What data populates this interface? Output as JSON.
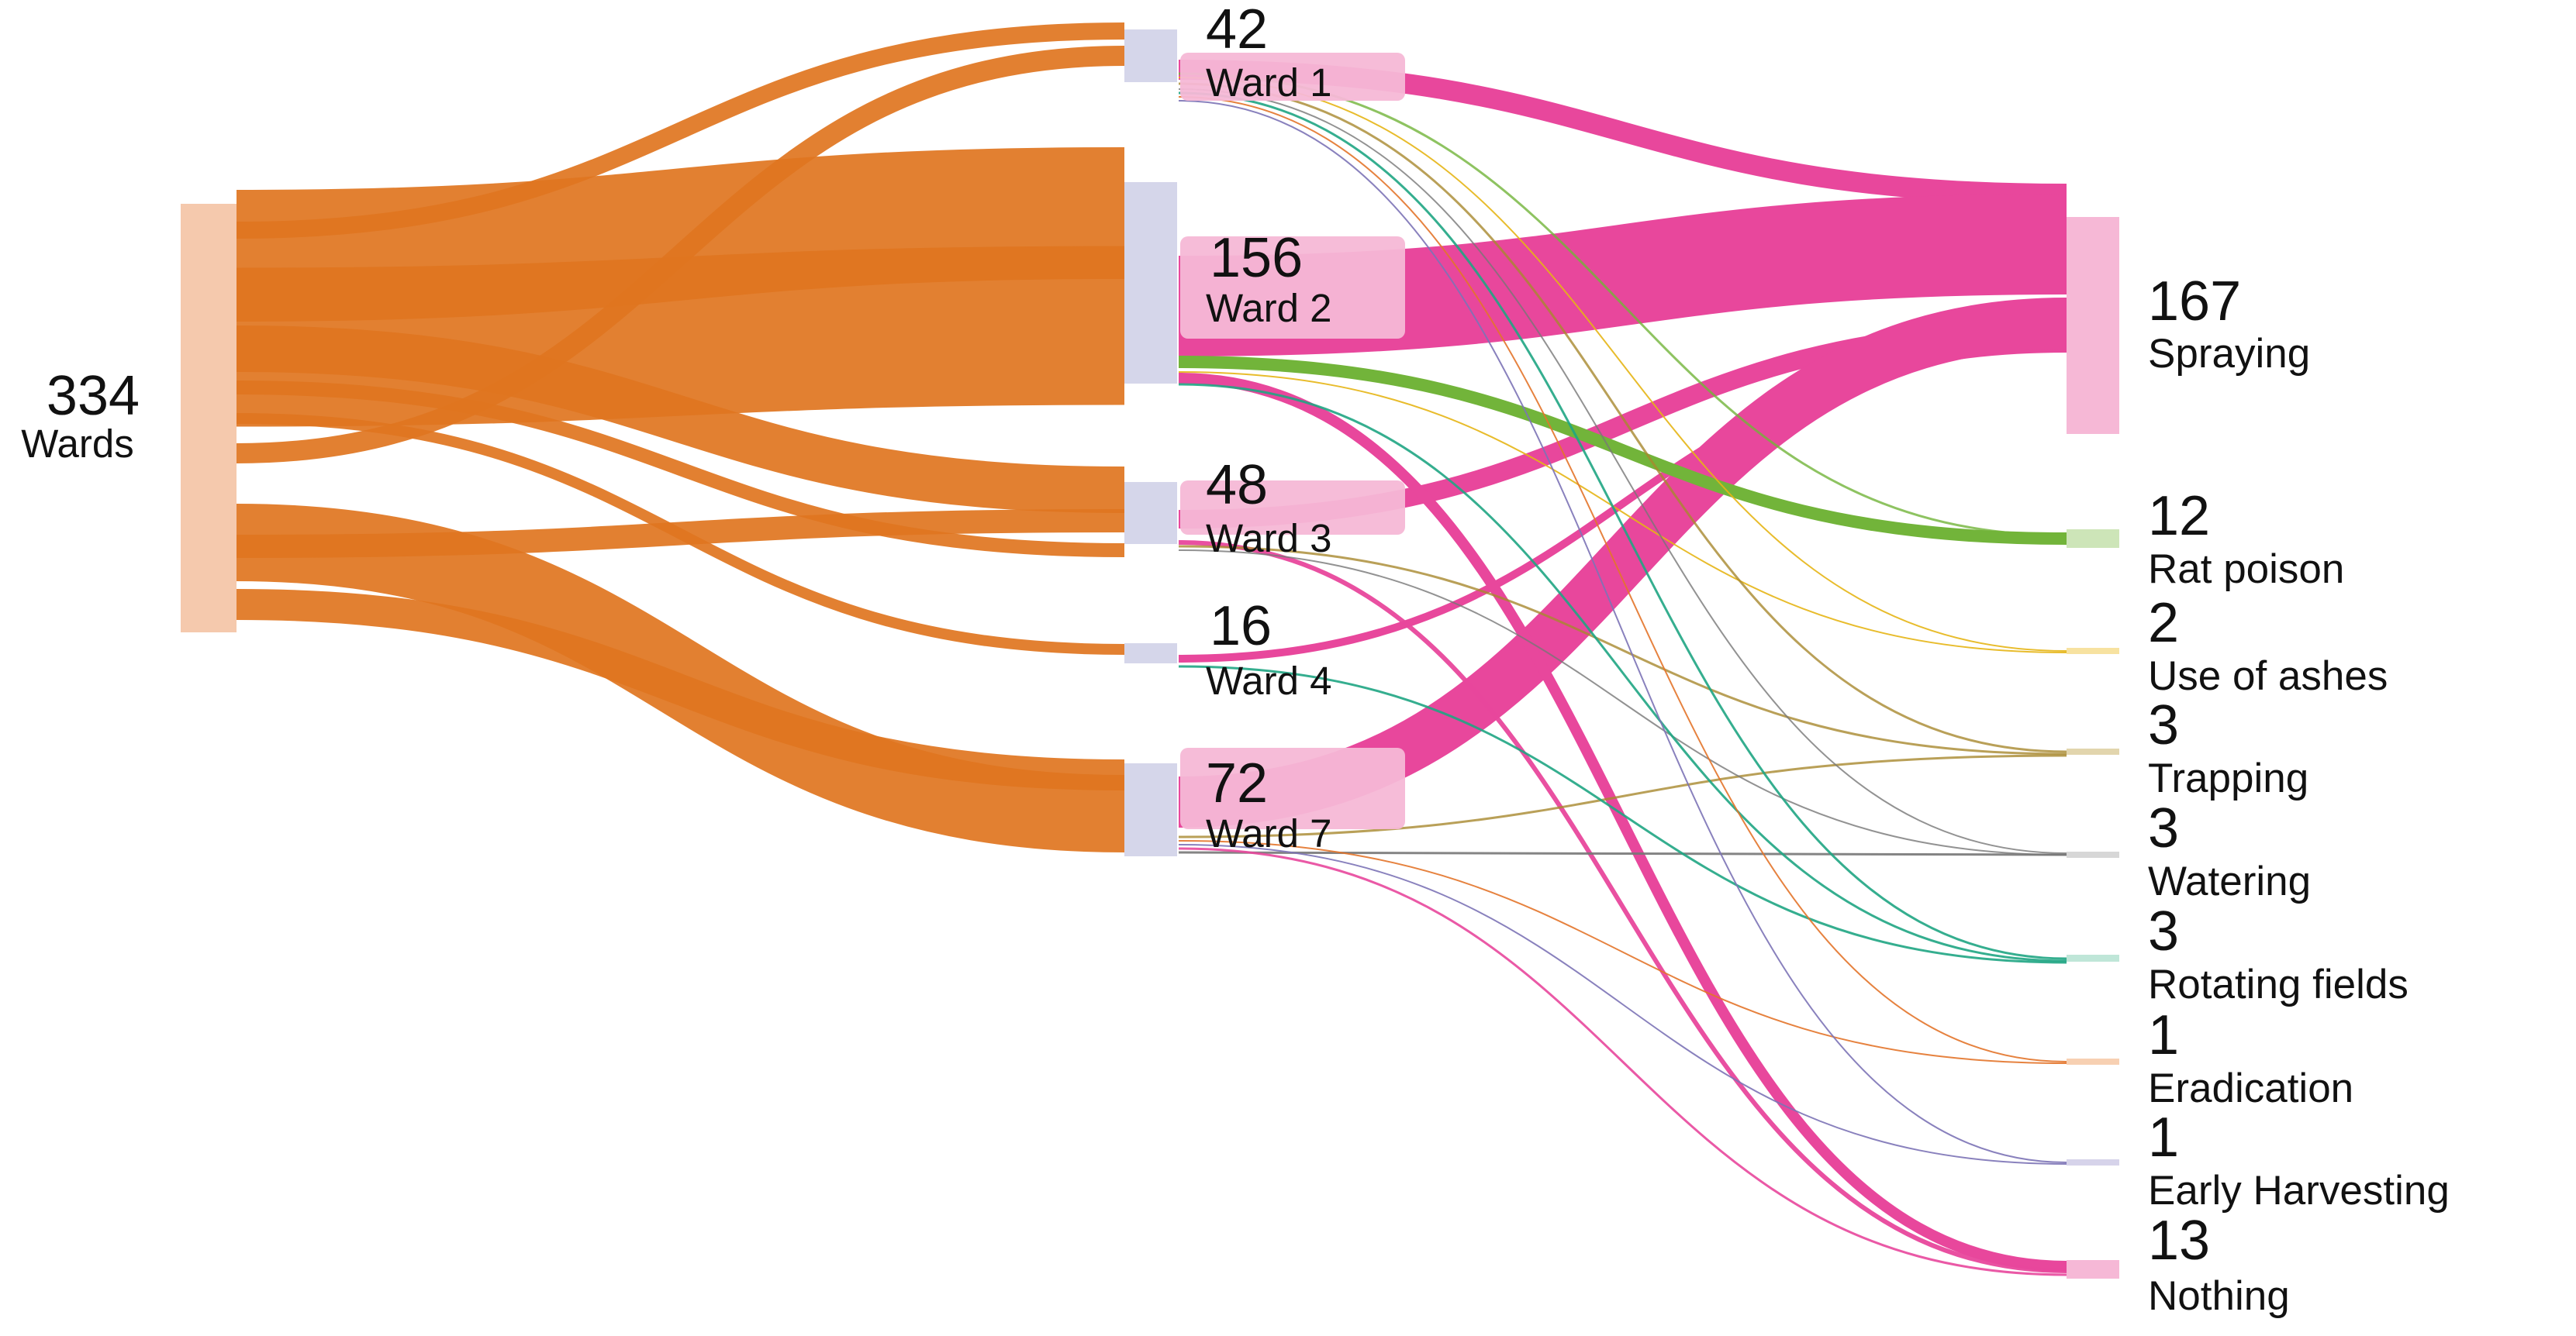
{
  "source": {
    "value": "334",
    "label": "Wards"
  },
  "wards": [
    {
      "value": "42",
      "label": "Ward 1"
    },
    {
      "value": "156",
      "label": "Ward 2"
    },
    {
      "value": "48",
      "label": "Ward 3"
    },
    {
      "value": "16",
      "label": "Ward 4"
    },
    {
      "value": "72",
      "label": "Ward 7"
    }
  ],
  "methods": [
    {
      "value": "167",
      "label": "Spraying"
    },
    {
      "value": "12",
      "label": "Rat poison"
    },
    {
      "value": "2",
      "label": "Use of ashes"
    },
    {
      "value": "3",
      "label": "Trapping"
    },
    {
      "value": "3",
      "label": "Watering"
    },
    {
      "value": "3",
      "label": "Rotating fields"
    },
    {
      "value": "1",
      "label": "Eradication"
    },
    {
      "value": "1",
      "label": "Early Harvesting"
    },
    {
      "value": "13",
      "label": "Nothing"
    }
  ],
  "colors": {
    "source_node": "#f5c9ad",
    "source_link": "#e07520",
    "ward_node": "#d5d6ea",
    "spraying": "#e8479c",
    "spraying_node": "#f6b8d6",
    "rat_poison": "#72b43a",
    "rat_poison_node": "#cde5b8",
    "use_of_ashes": "#e5b515",
    "trapping": "#a8882e",
    "watering": "#777777",
    "rotating_fields": "#1fa583",
    "eradication": "#e3742a",
    "early_harvesting": "#7c73b6",
    "nothing": "#e8479c",
    "label_box": "#f6b8d6"
  }
}
